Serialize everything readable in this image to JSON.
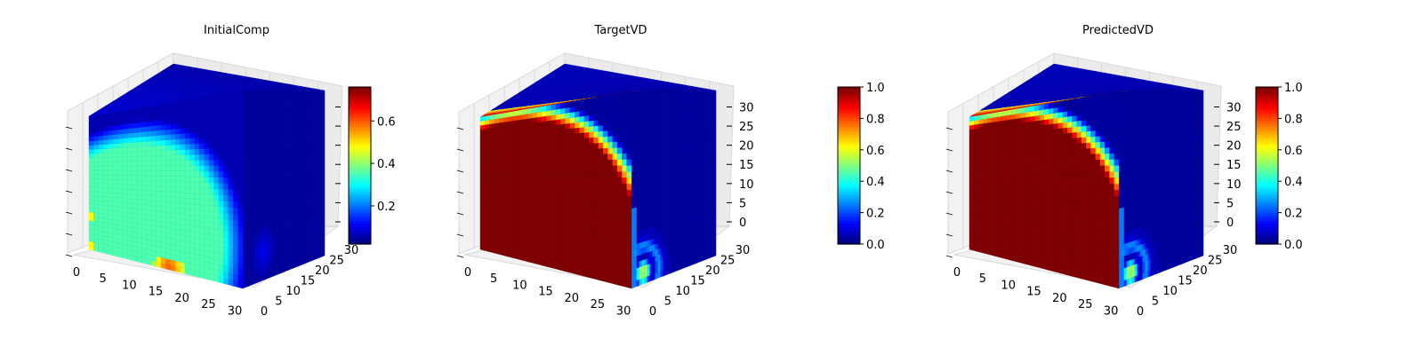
{
  "colormap": {
    "name": "jet",
    "stops": [
      "#00007f",
      "#0000ff",
      "#007fff",
      "#00ffff",
      "#7fff7f",
      "#ffff00",
      "#ff7f00",
      "#ff0000",
      "#7f0000"
    ]
  },
  "chart_data": [
    {
      "type": "heatmap",
      "subtype": "3d-voxel",
      "title": "InitialComp",
      "axis_ticks": {
        "x": [
          "0",
          "5",
          "10",
          "15",
          "20",
          "25",
          "30"
        ],
        "y": [
          "0",
          "5",
          "10",
          "15",
          "20",
          "25",
          "30"
        ],
        "z": []
      },
      "grid": true,
      "value_range": [
        0.02,
        0.76
      ],
      "face_fields": {
        "front": {
          "background": 0.05,
          "blob": {
            "center": [
              0.3,
              0.2
            ],
            "radius": 0.75,
            "value": 0.45
          },
          "hotspot": {
            "position": [
              0.52,
              0.03
            ],
            "value": 0.75
          }
        },
        "top": {
          "background": 0.05
        },
        "side": {
          "background": 0.03
        }
      },
      "colorbar": {
        "ticks": [
          "0.2",
          "0.4",
          "0.6"
        ],
        "tick_values": [
          0.2,
          0.4,
          0.6
        ]
      }
    },
    {
      "type": "heatmap",
      "subtype": "3d-voxel",
      "title": "TargetVD",
      "axis_ticks": {
        "x": [
          "0",
          "5",
          "10",
          "15",
          "20",
          "25",
          "30"
        ],
        "y": [
          "0",
          "5",
          "10",
          "15",
          "20",
          "25",
          "30"
        ],
        "z": [
          "0",
          "5",
          "10",
          "15",
          "20",
          "25",
          "30"
        ]
      },
      "grid": true,
      "value_range": [
        0.0,
        1.0
      ],
      "face_fields": {
        "front": {
          "background": 0.03,
          "disc": {
            "center": [
              0.22,
              0.0
            ],
            "radius": 0.95,
            "value": 1.0
          }
        },
        "top": {
          "background": 0.06
        },
        "side": {
          "background": 0.03,
          "rings": true
        }
      },
      "colorbar": {
        "ticks": [
          "0.0",
          "0.2",
          "0.4",
          "0.6",
          "0.8",
          "1.0"
        ],
        "tick_values": [
          0.0,
          0.2,
          0.4,
          0.6,
          0.8,
          1.0
        ]
      }
    },
    {
      "type": "heatmap",
      "subtype": "3d-voxel",
      "title": "PredictedVD",
      "axis_ticks": {
        "x": [
          "0",
          "5",
          "10",
          "15",
          "20",
          "25",
          "30"
        ],
        "y": [
          "0",
          "5",
          "10",
          "15",
          "20",
          "25",
          "30"
        ],
        "z": [
          "0",
          "5",
          "10",
          "15",
          "20",
          "25",
          "30"
        ]
      },
      "grid": true,
      "value_range": [
        0.0,
        1.0
      ],
      "face_fields": {
        "front": {
          "background": 0.03,
          "disc": {
            "center": [
              0.22,
              0.0
            ],
            "radius": 0.95,
            "value": 1.0
          }
        },
        "top": {
          "background": 0.06
        },
        "side": {
          "background": 0.03,
          "rings": true
        }
      },
      "colorbar": {
        "ticks": [
          "0.0",
          "0.2",
          "0.4",
          "0.6",
          "0.8",
          "1.0"
        ],
        "tick_values": [
          0.0,
          0.2,
          0.4,
          0.6,
          0.8,
          1.0
        ]
      }
    }
  ]
}
